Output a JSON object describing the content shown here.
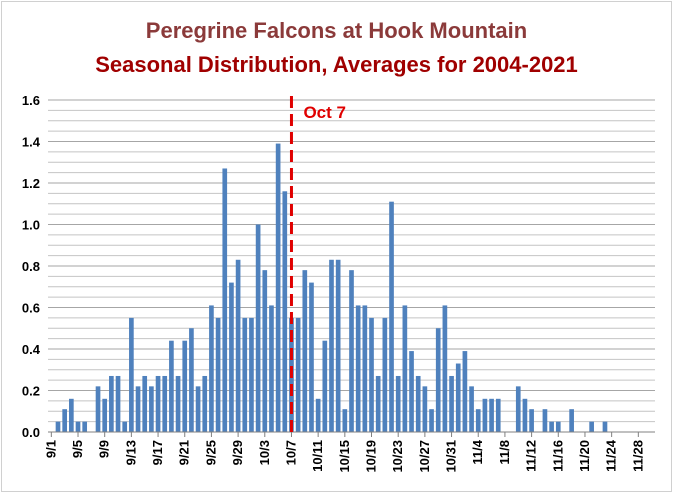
{
  "chart_data": {
    "type": "bar",
    "title": "Peregrine Falcons at Hook Mountain",
    "subtitle": "Seasonal Distribution, Averages for 2004-2021",
    "xlabel": "",
    "ylabel": "",
    "ylim": [
      0,
      1.6
    ],
    "yticks": [
      "0.0",
      "0.2",
      "0.4",
      "0.6",
      "0.8",
      "1.0",
      "1.2",
      "1.4",
      "1.6"
    ],
    "grid": true,
    "bar_color": "#4f81bd",
    "x_tick_labels": [
      "9/1",
      "9/5",
      "9/9",
      "9/13",
      "9/17",
      "9/21",
      "9/25",
      "9/29",
      "10/3",
      "10/7",
      "10/11",
      "10/15",
      "10/19",
      "10/23",
      "10/27",
      "10/31",
      "11/4",
      "11/8",
      "11/12",
      "11/16",
      "11/20",
      "11/24",
      "11/28"
    ],
    "categories": [
      "9/1",
      "9/2",
      "9/3",
      "9/4",
      "9/5",
      "9/6",
      "9/7",
      "9/8",
      "9/9",
      "9/10",
      "9/11",
      "9/12",
      "9/13",
      "9/14",
      "9/15",
      "9/16",
      "9/17",
      "9/18",
      "9/19",
      "9/20",
      "9/21",
      "9/22",
      "9/23",
      "9/24",
      "9/25",
      "9/26",
      "9/27",
      "9/28",
      "9/29",
      "9/30",
      "10/1",
      "10/2",
      "10/3",
      "10/4",
      "10/5",
      "10/6",
      "10/7",
      "10/8",
      "10/9",
      "10/10",
      "10/11",
      "10/12",
      "10/13",
      "10/14",
      "10/15",
      "10/16",
      "10/17",
      "10/18",
      "10/19",
      "10/20",
      "10/21",
      "10/22",
      "10/23",
      "10/24",
      "10/25",
      "10/26",
      "10/27",
      "10/28",
      "10/29",
      "10/30",
      "10/31",
      "11/1",
      "11/2",
      "11/3",
      "11/4",
      "11/5",
      "11/6",
      "11/7",
      "11/8",
      "11/9",
      "11/10",
      "11/11",
      "11/12",
      "11/13",
      "11/14",
      "11/15",
      "11/16",
      "11/17",
      "11/18",
      "11/19",
      "11/20",
      "11/21",
      "11/22",
      "11/23",
      "11/24",
      "11/25",
      "11/26",
      "11/27",
      "11/28",
      "11/29",
      "11/30"
    ],
    "values": [
      0,
      0.05,
      0.11,
      0.16,
      0.05,
      0.05,
      0,
      0.22,
      0.16,
      0.27,
      0.27,
      0.05,
      0.55,
      0.22,
      0.27,
      0.22,
      0.27,
      0.27,
      0.44,
      0.27,
      0.44,
      0.5,
      0.22,
      0.27,
      0.61,
      0.55,
      1.27,
      0.72,
      0.83,
      0.55,
      0.55,
      1.0,
      0.78,
      0.61,
      1.39,
      1.16,
      0.55,
      0.55,
      0.78,
      0.72,
      0.16,
      0.44,
      0.83,
      0.83,
      0.11,
      0.78,
      0.61,
      0.61,
      0.55,
      0.27,
      0.55,
      1.11,
      0.27,
      0.61,
      0.39,
      0.27,
      0.22,
      0.11,
      0.5,
      0.61,
      0.27,
      0.33,
      0.39,
      0.22,
      0.11,
      0.16,
      0.16,
      0.16,
      0,
      0,
      0.22,
      0.16,
      0.11,
      0,
      0.11,
      0.05,
      0.05,
      0,
      0.11,
      0,
      0,
      0.05,
      0,
      0.05,
      0,
      0,
      0,
      0,
      0,
      0,
      0
    ],
    "annotation": {
      "label": "Oct 7",
      "at_category": "10/7",
      "style": "dashed vertical line",
      "color": "#e00000"
    }
  }
}
